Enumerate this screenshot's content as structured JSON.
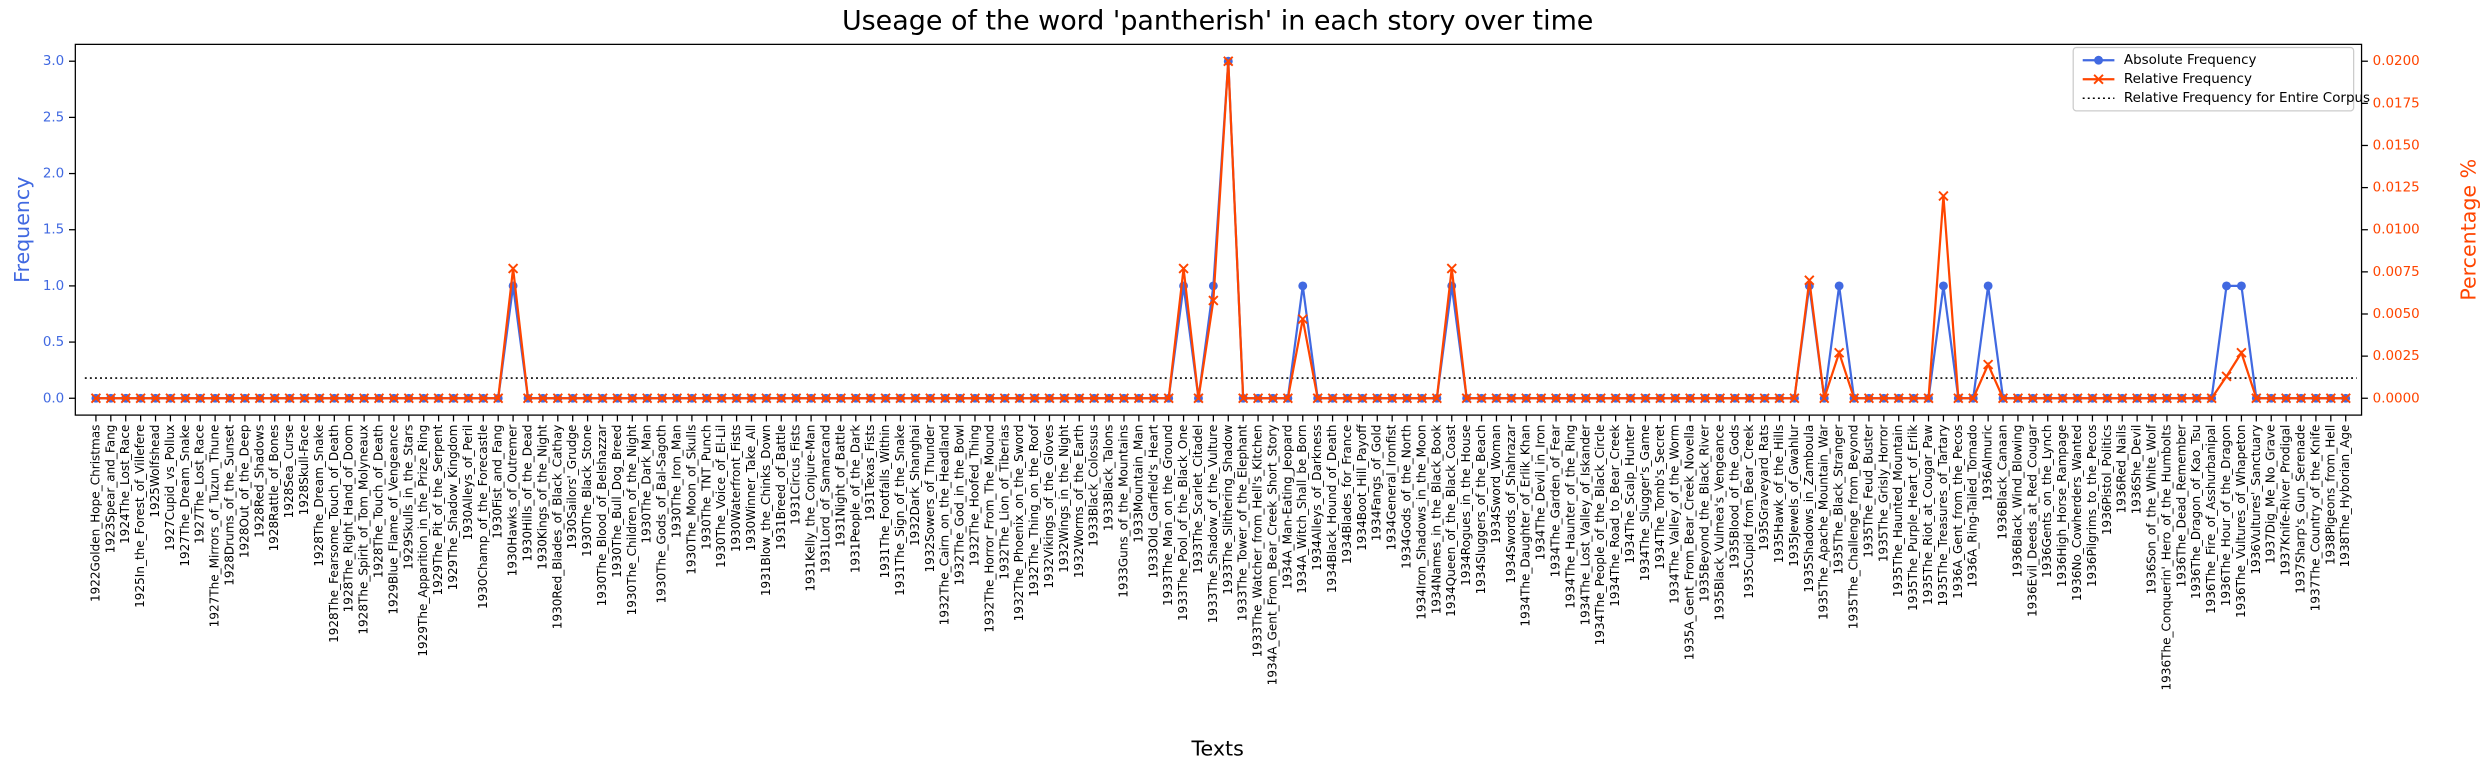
{
  "chart_data": {
    "type": "line",
    "title": "Useage of the word 'pantherish' in each story over time",
    "xlabel": "Texts",
    "ylabel": "Frequency",
    "y2label": "Percentage %",
    "categories": [
      "1922Golden_Hope_Christmas",
      "1923Spear_and_Fang",
      "1924The_Lost_Race",
      "1925In_the_Forest_of_Villefere",
      "1925Wolfshead",
      "1927Cupid_vs_Pollux",
      "1927The_Dream_Snake",
      "1927The_Lost_Race",
      "1927The_Mirrors_of_Tuzun_Thune",
      "1928Drums_of_the_Sunset",
      "1928Out_of_the_Deep",
      "1928Red_Shadows",
      "1928Rattle_of_Bones",
      "1928Sea_Curse",
      "1928Skull-Face",
      "1928The_Dream_Snake",
      "1928The_Fearsome_Touch_of_Death",
      "1928The_Right_Hand_of_Doom",
      "1928The_Spirit_of_Tom_Molyneaux",
      "1928The_Touch_of_Death",
      "1929Blue_Flame_of_Vengeance",
      "1929Skulls_in_the_Stars",
      "1929The_Apparition_in_the_Prize_Ring",
      "1929The_Pit_of_the_Serpent",
      "1929The_Shadow_Kingdom",
      "1930Alleys_of_Peril",
      "1930Champ_of_the_Forecastle",
      "1930Fist_and_Fang",
      "1930Hawks_of_Outremer",
      "1930Hills_of_the_Dead",
      "1930Kings_of_the_Night",
      "1930Red_Blades_of_Black_Cathay",
      "1930Sailors'_Grudge",
      "1930The_Black_Stone",
      "1930The_Blood_of_Belshazzar",
      "1930The_Bull_Dog_Breed",
      "1930The_Children_of_the_Night",
      "1930The_Dark_Man",
      "1930The_Gods_of_Bal-Sagoth",
      "1930The_Iron_Man",
      "1930The_Moon_of_Skulls",
      "1930The_TNT_Punch",
      "1930The_Voice_of_El-Lil",
      "1930Waterfront_Fists",
      "1930Winner_Take_All",
      "1931Blow_the_Chinks_Down",
      "1931Breed_of_Battle",
      "1931Circus_Fists",
      "1931Kelly_the_Conjure-Man",
      "1931Lord_of_Samarcand",
      "1931Night_of_Battle",
      "1931People_of_the_Dark",
      "1931Texas_Fists",
      "1931The_Footfalls_Within",
      "1931The_Sign_of_the_Snake",
      "1932Dark_Shanghai",
      "1932Sowers_of_Thunder",
      "1932The_Cairn_on_the_Headland",
      "1932The_God_in_the_Bowl",
      "1932The_Hoofed_Thing",
      "1932The_Horror_From_The_Mound",
      "1932The_Lion_of_Tiberias",
      "1932The_Phoenix_on_the_Sword",
      "1932The_Thing_on_the_Roof",
      "1932Vikings_of_the_Gloves",
      "1932Wings_in_the_Night",
      "1932Worms_of_the_Earth",
      "1933Black_Colossus",
      "1933Black_Talons",
      "1933Guns_of_the_Mountains",
      "1933Mountain_Man",
      "1933Old_Garfield's_Heart",
      "1933The_Man_on_the_Ground",
      "1933The_Pool_of_the_Black_One",
      "1933The_Scarlet_Citadel",
      "1933The_Shadow_of_the_Vulture",
      "1933The_Slithering_Shadow",
      "1933The_Tower_of_the_Elephant",
      "1933The_Watcher_from_Hell's_Kitchen",
      "1934A_Gent_From_Bear_Creek_Short_Story",
      "1934A_Man-Eating_Jeopard",
      "1934A_Witch_Shall_be_Born",
      "1934Alleys_of_Darkness",
      "1934Black_Hound_of_Death",
      "1934Blades_for_France",
      "1934Boot_Hill_Payoff",
      "1934Fangs_of_Gold",
      "1934General_Ironfist",
      "1934Gods_of_the_North",
      "1934Iron_Shadows_in_the_Moon",
      "1934Names_in_the_Black_Book",
      "1934Queen_of_the_Black_Coast",
      "1934Rogues_in_the_House",
      "1934Sluggers_of_the_Beach",
      "1934Sword_Woman",
      "1934Swords_of_Shahrazar",
      "1934The_Daughter_of_Erlik_Khan",
      "1934The_Devil_in_Iron",
      "1934The_Garden_of_Fear",
      "1934The_Haunter_of_the_Ring",
      "1934The_Lost_Valley_of_Iskander",
      "1934The_People_of_the_Black_Circle",
      "1934The_Road_to_Bear_Creek",
      "1934The_Scalp_Hunter",
      "1934The_Slugger's_Game",
      "1934The_Tomb's_Secret",
      "1934The_Valley_of_the_Worm",
      "1935A_Gent_From_Bear_Creek_Novella",
      "1935Beyond_the_Black_River",
      "1935Black_Vulmea's_Vengeance",
      "1935Blood_of_the_Gods",
      "1935Cupid_from_Bear_Creek",
      "1935Graveyard_Rats",
      "1935Hawk_of_the_Hills",
      "1935Jewels_of_Gwahlur",
      "1935Shadows_in_Zamboula",
      "1935The_Apache_Mountain_War",
      "1935The_Black_Stranger",
      "1935The_Challenge_from_Beyond",
      "1935The_Feud_Buster",
      "1935The_Grisly_Horror",
      "1935The_Haunted_Mountain",
      "1935The_Purple_Heart_of_Erlik",
      "1935The_Riot_at_Cougar_Paw",
      "1935The_Treasures_of_Tartary",
      "1936A_Gent_from_the_Pecos",
      "1936A_Ring-Tailed_Tornado",
      "1936Almuric",
      "1936Black_Canaan",
      "1936Black_Wind_Blowing",
      "1936Evil_Deeds_at_Red_Cougar",
      "1936Gents_on_the_Lynch",
      "1936High_Horse_Rampage",
      "1936No_Cowherders_Wanted",
      "1936Pilgrims_to_the_Pecos",
      "1936Pistol_Politics",
      "1936Red_Nails",
      "1936She_Devil",
      "1936Son_of_the_White_Wolf",
      "1936The_Conquerin'_Hero_of_the_Humbolts",
      "1936The_Dead_Remember",
      "1936The_Dragon_of_Kao_Tsu",
      "1936The_Fire_of_Asshurbanipal",
      "1936The_Hour_of_the_Dragon",
      "1936The_Vultures_of_Whapeton",
      "1936Vultures'_Sanctuary",
      "1937Dig_Me_No_Grave",
      "1937Knife-River_Prodigal",
      "1937Sharp's_Gun_Serenade",
      "1937The_Country_of_the_Knife",
      "1938Pigeons_from_Hell",
      "1938The_Hyborian_Age"
    ],
    "series": [
      {
        "name": "Absolute Frequency",
        "color": "#4169e1",
        "marker": "circle",
        "values": [
          0,
          0,
          0,
          0,
          0,
          0,
          0,
          0,
          0,
          0,
          0,
          0,
          0,
          0,
          0,
          0,
          0,
          0,
          0,
          0,
          0,
          0,
          0,
          0,
          0,
          0,
          0,
          0,
          1,
          0,
          0,
          0,
          0,
          0,
          0,
          0,
          0,
          0,
          0,
          0,
          0,
          0,
          0,
          0,
          0,
          0,
          0,
          0,
          0,
          0,
          0,
          0,
          0,
          0,
          0,
          0,
          0,
          0,
          0,
          0,
          0,
          0,
          0,
          0,
          0,
          0,
          0,
          0,
          0,
          0,
          0,
          0,
          0,
          1,
          0,
          1,
          3,
          0,
          0,
          0,
          0,
          1,
          0,
          0,
          0,
          0,
          0,
          0,
          0,
          0,
          0,
          1,
          0,
          0,
          0,
          0,
          0,
          0,
          0,
          0,
          0,
          0,
          0,
          0,
          0,
          0,
          0,
          0,
          0,
          0,
          0,
          0,
          0,
          0,
          0,
          1,
          0,
          1,
          0,
          0,
          0,
          0,
          0,
          0,
          1,
          0,
          0,
          1,
          0,
          0,
          0,
          0,
          0,
          0,
          0,
          0,
          0,
          0,
          0,
          0,
          0,
          0,
          0,
          1,
          1,
          0,
          0,
          0,
          0,
          0,
          0,
          0
        ]
      },
      {
        "name": "Relative Frequency",
        "color": "#ff4500",
        "marker": "x",
        "axis": "y2",
        "values": [
          0,
          0,
          0,
          0,
          0,
          0,
          0,
          0,
          0,
          0,
          0,
          0,
          0,
          0,
          0,
          0,
          0,
          0,
          0,
          0,
          0,
          0,
          0,
          0,
          0,
          0,
          0,
          0,
          0.0077,
          0,
          0,
          0,
          0,
          0,
          0,
          0,
          0,
          0,
          0,
          0,
          0,
          0,
          0,
          0,
          0,
          0,
          0,
          0,
          0,
          0,
          0,
          0,
          0,
          0,
          0,
          0,
          0,
          0,
          0,
          0,
          0,
          0,
          0,
          0,
          0,
          0,
          0,
          0,
          0,
          0,
          0,
          0,
          0,
          0.0077,
          0,
          0.0058,
          0.02,
          0,
          0,
          0,
          0,
          0.0047,
          0,
          0,
          0,
          0,
          0,
          0,
          0,
          0,
          0,
          0.0077,
          0,
          0,
          0,
          0,
          0,
          0,
          0,
          0,
          0,
          0,
          0,
          0,
          0,
          0,
          0,
          0,
          0,
          0,
          0,
          0,
          0,
          0,
          0,
          0.007,
          0,
          0.0027,
          0,
          0,
          0,
          0,
          0,
          0,
          0.012,
          0,
          0,
          0.002,
          0,
          0,
          0,
          0,
          0,
          0,
          0,
          0,
          0,
          0,
          0,
          0,
          0,
          0,
          0,
          0.0013,
          0.0027,
          0,
          0,
          0,
          0,
          0,
          0,
          0
        ]
      }
    ],
    "reference_line": {
      "name": "Relative Frequency for Entire Corpus",
      "color": "#000000",
      "axis": "y2",
      "value": 0.0012
    },
    "ylim": [
      -0.15,
      3.15
    ],
    "yticks": [
      {
        "value": 0,
        "label": "0.0"
      },
      {
        "value": 0.5,
        "label": "0.5"
      },
      {
        "value": 1,
        "label": "1.0"
      },
      {
        "value": 1.5,
        "label": "1.5"
      },
      {
        "value": 2,
        "label": "2.0"
      },
      {
        "value": 2.5,
        "label": "2.5"
      },
      {
        "value": 3,
        "label": "3.0"
      }
    ],
    "y2lim": [
      -0.001,
      0.021
    ],
    "y2ticks": [
      {
        "value": 0,
        "label": "0.0000"
      },
      {
        "value": 0.0025,
        "label": "0.0025"
      },
      {
        "value": 0.005,
        "label": "0.0050"
      },
      {
        "value": 0.0075,
        "label": "0.0075"
      },
      {
        "value": 0.01,
        "label": "0.0100"
      },
      {
        "value": 0.0125,
        "label": "0.0125"
      },
      {
        "value": 0.015,
        "label": "0.0150"
      },
      {
        "value": 0.0175,
        "label": "0.0175"
      },
      {
        "value": 0.02,
        "label": "0.0200"
      }
    ],
    "yaxis_color": "#4169e1",
    "y2axis_color": "#ff4500",
    "legend": "upper right",
    "grid": false
  }
}
